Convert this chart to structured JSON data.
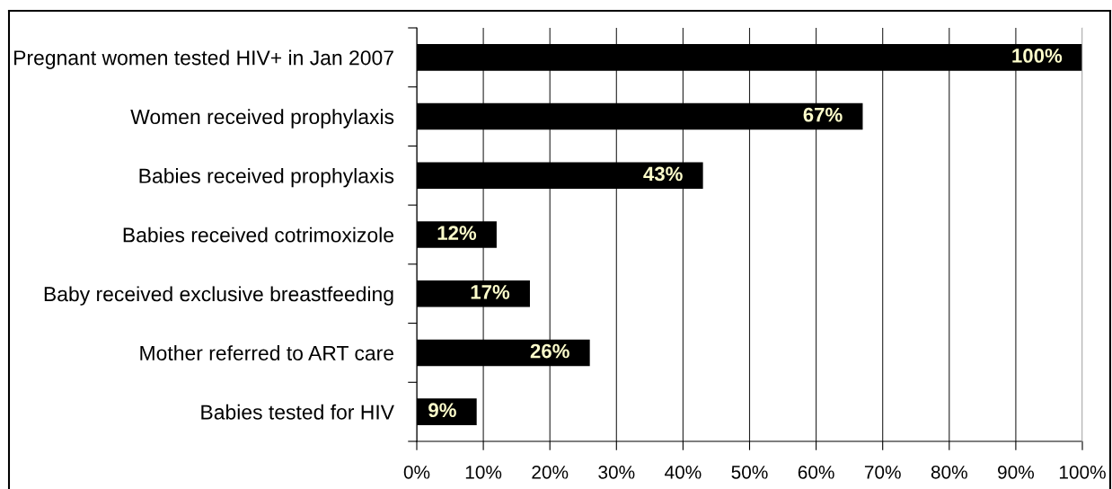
{
  "chart_data": {
    "type": "bar",
    "orientation": "horizontal",
    "categories": [
      "Pregnant women tested HIV+ in Jan 2007",
      "Women received prophylaxis",
      "Babies received prophylaxis",
      "Babies received cotrimoxizole",
      "Baby received exclusive breastfeeding",
      "Mother referred to ART care",
      "Babies tested for HIV"
    ],
    "values": [
      100,
      67,
      43,
      12,
      17,
      26,
      9
    ],
    "color": "#000000",
    "value_labels": [
      "100%",
      "67%",
      "43%",
      "12%",
      "17%",
      "26%",
      "9%"
    ],
    "xlim": [
      0,
      100
    ],
    "xticks": [
      {
        "value": 0,
        "label": "0%"
      },
      {
        "value": 10,
        "label": "10%"
      },
      {
        "value": 20,
        "label": "20%"
      },
      {
        "value": 30,
        "label": "30%"
      },
      {
        "value": 40,
        "label": "40%"
      },
      {
        "value": 50,
        "label": "50%"
      },
      {
        "value": 60,
        "label": "60%"
      },
      {
        "value": 70,
        "label": "70%"
      },
      {
        "value": 80,
        "label": "80%"
      },
      {
        "value": 90,
        "label": "90%"
      },
      {
        "value": 100,
        "label": "100%"
      }
    ],
    "grid": "x"
  }
}
